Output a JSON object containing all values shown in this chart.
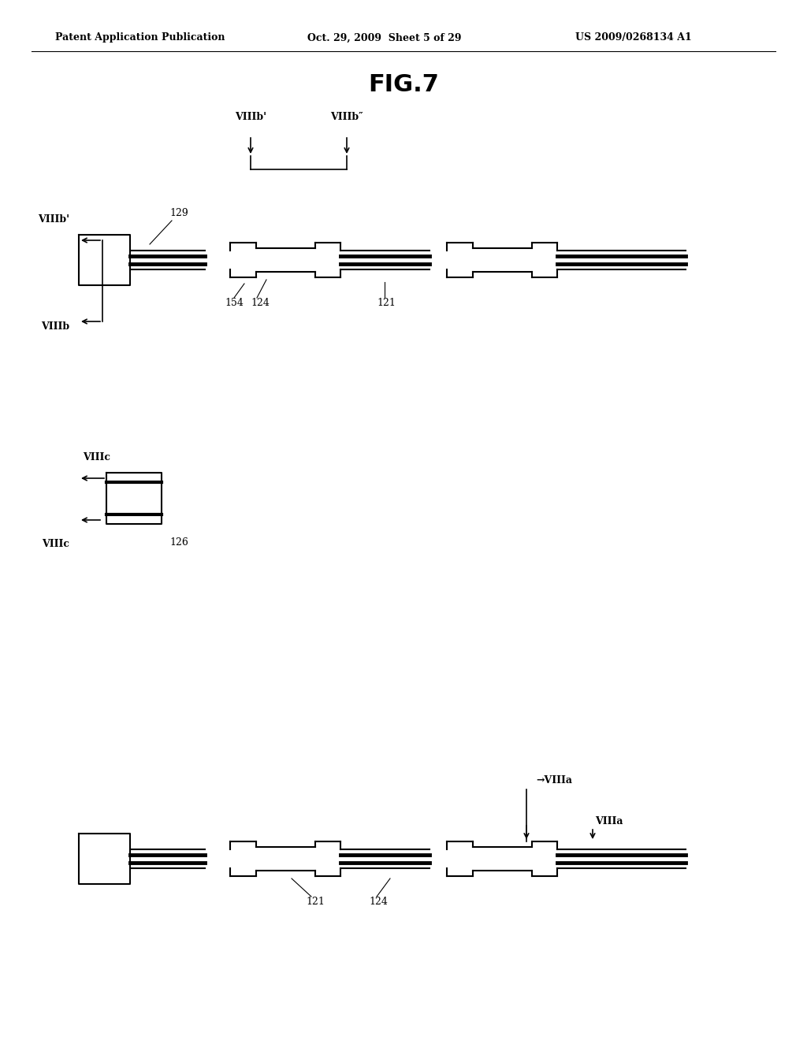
{
  "title": "FIG.7",
  "header_left": "Patent Application Publication",
  "header_center": "Oct. 29, 2009  Sheet 5 of 29",
  "header_right": "US 2009/0268134 A1",
  "bg_color": "#ffffff",
  "fg_color": "#000000"
}
